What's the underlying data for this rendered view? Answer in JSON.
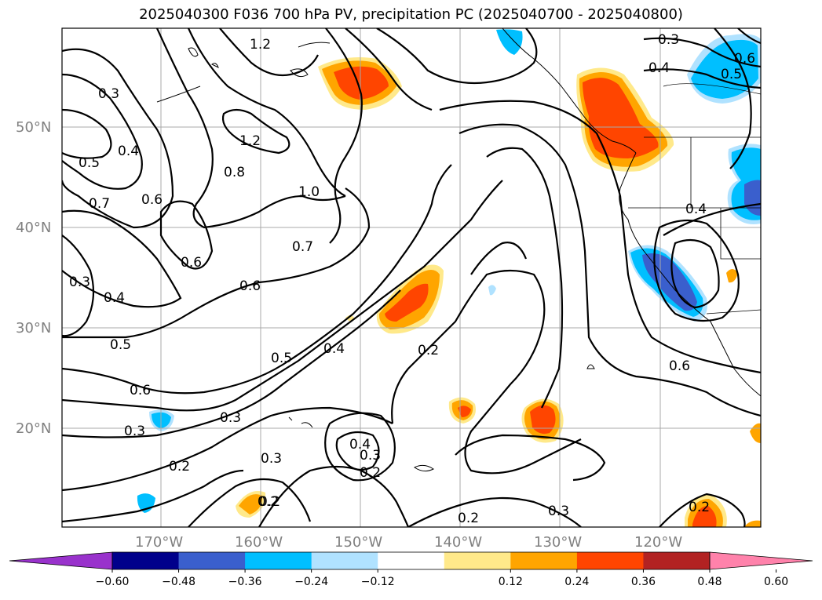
{
  "title": "2025040300 F036 700 hPa PV, precipitation PC (2025040700 - 2025040800)",
  "lat_labels": [
    "50°N",
    "40°N",
    "30°N",
    "20°N"
  ],
  "lon_labels": [
    "170°W",
    "160°W",
    "150°W",
    "140°W",
    "130°W",
    "120°W"
  ],
  "contour_labels": [
    "1.2",
    "0.3",
    "0.4",
    "0.5",
    "0.7",
    "0.6",
    "0.8",
    "1.2",
    "1.0",
    "0.6",
    "0.7",
    "0.6",
    "0.3",
    "0.4",
    "0.5",
    "0.6",
    "0.3",
    "0.2",
    "0.3",
    "0.2",
    "0.5",
    "0.4",
    "0.2",
    "0.4",
    "0.3",
    "0.2",
    "0.3",
    "0.2",
    "0.2",
    "0.3",
    "0.2",
    "0.6",
    "0.4",
    "0.3",
    "0.4",
    "0.5",
    "0.6"
  ],
  "colorbar": {
    "ticks": [
      "−0.60",
      "−0.48",
      "−0.36",
      "−0.24",
      "−0.12",
      "0.12",
      "0.24",
      "0.36",
      "0.48",
      "0.60"
    ],
    "colors": [
      "#9932CC",
      "#00008B",
      "#3A5FCD",
      "#00BFFF",
      "#B0E2FF",
      "#FFFFFF",
      "#FFE98A",
      "#FFA500",
      "#FF4500",
      "#B22222",
      "#FF82AB"
    ]
  }
}
